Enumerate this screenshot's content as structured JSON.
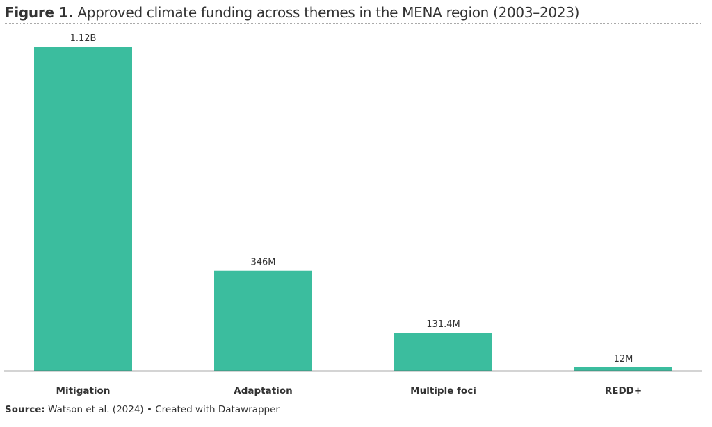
{
  "title": {
    "prefix": "Figure 1.",
    "text": " Approved climate funding across themes in the MENA region (2003–2023)"
  },
  "source": {
    "label": "Source:",
    "text": " Watson et al. (2024) • Created with Datawrapper"
  },
  "colors": {
    "bar": "#3bbd9e",
    "axis": "#555555",
    "text": "#333333"
  },
  "chart_data": {
    "type": "bar",
    "categories": [
      "Mitigation",
      "Adaptation",
      "Multiple foci",
      "REDD+"
    ],
    "values": [
      1120,
      346,
      131.4,
      12
    ],
    "value_units": "million USD",
    "data_labels": [
      "1.12B",
      "346M",
      "131.4M",
      "12M"
    ],
    "ylim": [
      0,
      1120
    ],
    "grid": false,
    "legend": "none"
  }
}
